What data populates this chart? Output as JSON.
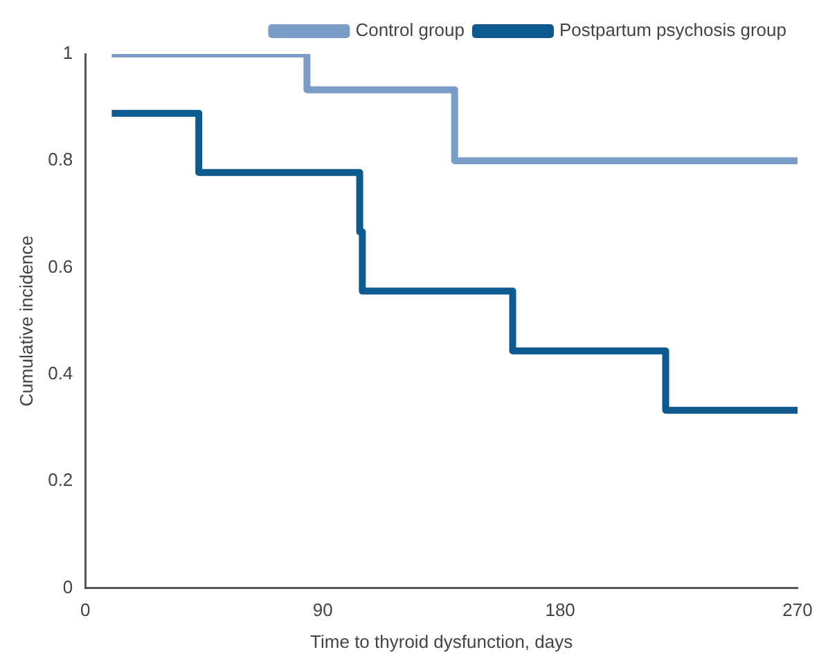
{
  "chart_data": {
    "type": "step",
    "xlabel": "Time to thyroid dysfunction, days",
    "ylabel": "Cumulative incidence",
    "xlim": [
      0,
      270
    ],
    "xticks": [
      0,
      90,
      180,
      270
    ],
    "ylim": [
      0,
      1
    ],
    "yticks": [
      0,
      0.2,
      0.4,
      0.6,
      0.8,
      1
    ],
    "grid": false,
    "legend": "top right",
    "marker": "none",
    "line_style": "solid",
    "series": [
      {
        "name": "Control group",
        "color": "#7a9cc6",
        "x": [
          10,
          84,
          140,
          270
        ],
        "values": [
          1,
          0.933,
          0.8,
          0.8
        ]
      },
      {
        "name": "Postpartum psychosis group",
        "color": "#0d5a8e",
        "x": [
          10,
          43,
          104,
          105,
          162,
          220,
          270
        ],
        "values": [
          0.889,
          0.778,
          0.667,
          0.556,
          0.444,
          0.333,
          0.333
        ]
      }
    ]
  }
}
